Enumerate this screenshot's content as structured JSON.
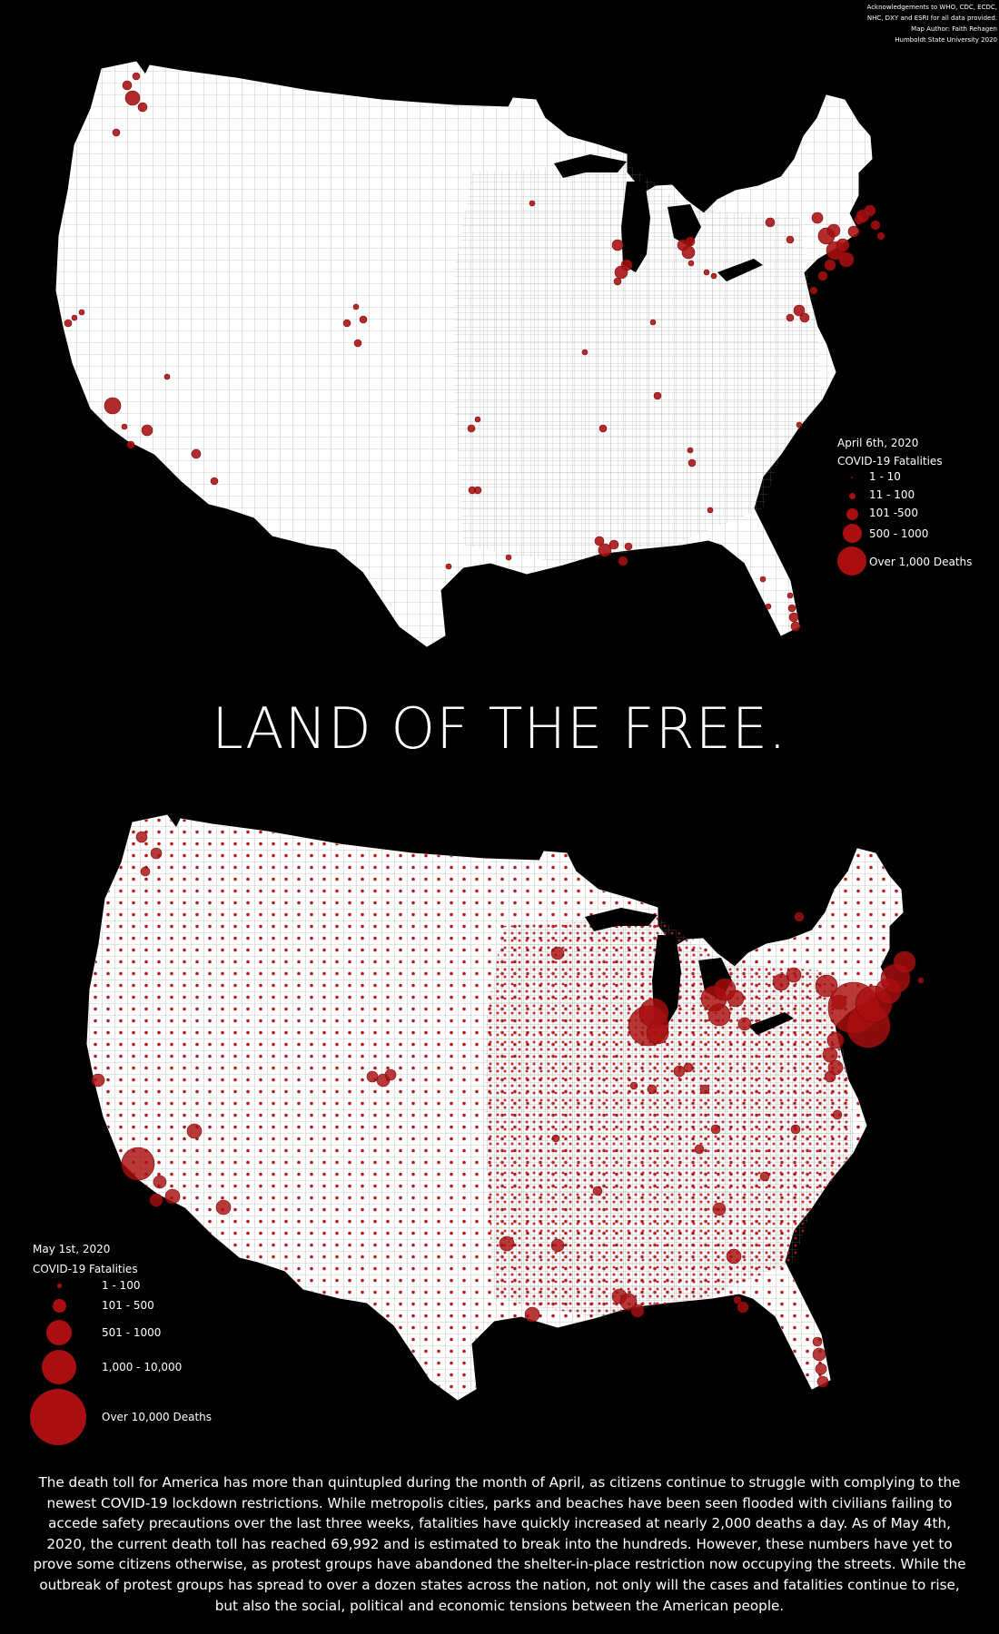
{
  "credits": [
    "Acknowledgements to WHO, CDC, ECDC,",
    "NHC, DXY and ESRI for all data provided.",
    "Map Author: Faith Rehagen",
    "Humboldt State University 2020"
  ],
  "title": "LAND OF THE FREE.",
  "colors": {
    "background": "#000000",
    "land": "#ffffff",
    "county_border": "#888888",
    "fatality_marker": "#a90f10",
    "text": "#ffffff"
  },
  "maps": [
    {
      "date": "April 6th, 2020",
      "legend_title": "COVID-19 Fatalities",
      "legend": [
        {
          "label": "1 - 10"
        },
        {
          "label": "11 - 100"
        },
        {
          "label": "101  -500"
        },
        {
          "label": "500 - 1000"
        },
        {
          "label": "Over 1,000 Deaths"
        }
      ]
    },
    {
      "date": "May 1st, 2020",
      "legend_title": "COVID-19 Fatalities",
      "legend": [
        {
          "label": "1 - 100"
        },
        {
          "label": "101 - 500"
        },
        {
          "label": "501 - 1000"
        },
        {
          "label": "1,000 - 10,000"
        },
        {
          "label": "Over 10,000 Deaths"
        }
      ]
    }
  ],
  "description": "The death toll for America has more than quintupled during the month of April, as citizens continue to struggle with complying to the newest COVID-19 lockdown restrictions. While  metropolis cities, parks and beaches have been seen flooded with civilians failing to accede safety precautions over the last three weeks, fatalities have quickly increased at nearly 2,000 deaths a day. As of May  4th, 2020, the current death toll has reached 69,992 and is estimated to break into the hundreds. However, these numbers have yet to prove some citizens otherwise, as protest groups have abandoned the shelter-in-place restriction now occupying the streets. While the outbreak of protest groups has spread to over a dozen states across the nation, not only will the cases and fatalities continue to rise, but also the social, political and economic tensions between the American people."
}
